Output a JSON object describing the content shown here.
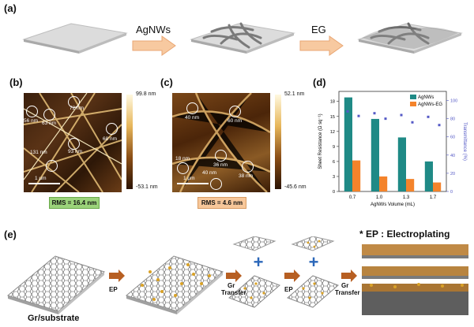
{
  "panels": {
    "a": "(a)",
    "b": "(b)",
    "c": "(c)",
    "d": "(d)",
    "e": "(e)"
  },
  "panel_a": {
    "step1": "AgNWs",
    "step2": "EG"
  },
  "panel_b": {
    "cb_top": "99.8 nm",
    "cb_bottom": "-53.1 nm",
    "scale": "1 μm",
    "rms": "RMS = 16.4 nm",
    "labels": [
      "56 nm",
      "63 nm",
      "72 nm",
      "68 nm",
      "93 nm",
      "131 nm"
    ],
    "rms_color": "#9bd37a"
  },
  "panel_c": {
    "cb_top": "52.1 nm",
    "cb_bottom": "-45.6 nm",
    "scale": "1 μm",
    "rms": "RMS = 4.6 nm",
    "labels": [
      "40 nm",
      "60 nm",
      "18 nm",
      "36 nm",
      "38 nm",
      "40 nm"
    ],
    "rms_color": "#f7c79a"
  },
  "chart_data": {
    "type": "bar",
    "categories": [
      "0.7",
      "1.0",
      "1.3",
      "1.7"
    ],
    "xlabel": "AgNWs Volume (mL)",
    "ylabel": "Sheet Resistance (Ω sq⁻¹)",
    "y2label": "Transmittance (%)",
    "ylim": [
      0,
      20
    ],
    "y_ticks": [
      "0",
      "3",
      "6",
      "9",
      "12",
      "15",
      "18"
    ],
    "y2_ticks": [
      "0",
      "20",
      "40",
      "60",
      "80",
      "100"
    ],
    "series": [
      {
        "name": "AgNWs",
        "values": [
          18.8,
          14.5,
          10.8,
          6.0
        ],
        "color": "#1f8a86"
      },
      {
        "name": "AgNWs-EG",
        "values": [
          6.2,
          3.0,
          2.5,
          1.8
        ],
        "color": "#f4832b"
      }
    ],
    "transmittance": {
      "color": "#5459c6",
      "x": [
        "0.7",
        "0.7",
        "1.0",
        "1.0",
        "1.3",
        "1.3",
        "1.7",
        "1.7"
      ],
      "values": [
        88,
        83,
        86,
        80,
        84,
        76,
        82,
        73
      ]
    },
    "legend": "top-right"
  },
  "panel_e": {
    "note": "* EP : Electroplating",
    "substrate": "Gr/substrate",
    "ep1": "EP",
    "ep2": "EP",
    "transfer1_a": "Gr",
    "transfer1_b": "Transfer",
    "transfer2_a": "Gr",
    "transfer2_b": "Transfer",
    "arrow_color": "#b75f22",
    "plus_color": "#2b67b9"
  }
}
